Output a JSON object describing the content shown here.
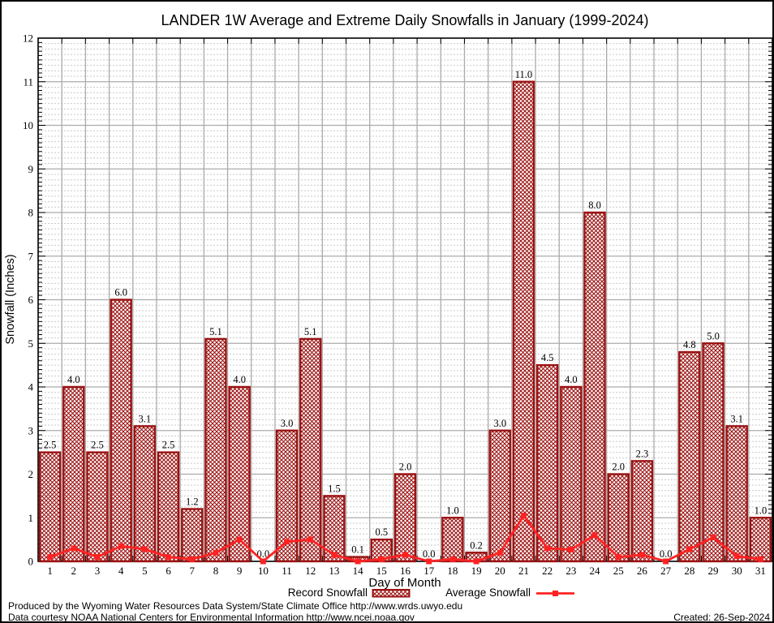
{
  "chart_data": {
    "type": "bar",
    "title": "LANDER 1W Average and Extreme Daily Snowfalls in January (1999-2024)",
    "xlabel": "Day of Month",
    "ylabel": "Snowfall (Inches)",
    "ylim": [
      0,
      12
    ],
    "yticks": [
      0,
      1,
      2,
      3,
      4,
      5,
      6,
      7,
      8,
      9,
      10,
      11,
      12
    ],
    "categories": [
      1,
      2,
      3,
      4,
      5,
      6,
      7,
      8,
      9,
      10,
      11,
      12,
      13,
      14,
      15,
      16,
      17,
      18,
      19,
      20,
      21,
      22,
      23,
      24,
      25,
      26,
      27,
      28,
      29,
      30,
      31
    ],
    "series": [
      {
        "name": "Record Snowfall",
        "type": "bar",
        "color": "#9B1212",
        "values": [
          2.5,
          4.0,
          2.5,
          6.0,
          3.1,
          2.5,
          1.2,
          5.1,
          4.0,
          0.0,
          3.0,
          5.1,
          1.5,
          0.1,
          0.5,
          2.0,
          0.0,
          1.0,
          0.2,
          3.0,
          11.0,
          4.5,
          4.0,
          8.0,
          2.0,
          2.3,
          0.0,
          4.8,
          5.0,
          3.1,
          1.0
        ],
        "labels": [
          "2.5",
          "4.0",
          "2.5",
          "6.0",
          "3.1",
          "2.5",
          "1.2",
          "5.1",
          "4.0",
          "0.0",
          "3.0",
          "5.1",
          "1.5",
          "0.1",
          "0.5",
          "2.0",
          "0.0",
          "1.0",
          "0.2",
          "3.0",
          "11.0",
          "4.5",
          "4.0",
          "8.0",
          "2.0",
          "2.3",
          "0.0",
          "4.8",
          "5.0",
          "3.1",
          "1.0"
        ]
      },
      {
        "name": "Average Snowfall",
        "type": "line",
        "color": "#FF2222",
        "values": [
          0.1,
          0.3,
          0.1,
          0.35,
          0.28,
          0.1,
          0.05,
          0.2,
          0.5,
          0.0,
          0.45,
          0.5,
          0.15,
          0.0,
          0.05,
          0.15,
          0.0,
          0.05,
          0.0,
          0.2,
          1.05,
          0.3,
          0.27,
          0.6,
          0.1,
          0.15,
          0.0,
          0.28,
          0.55,
          0.12,
          0.05
        ]
      }
    ],
    "grid": {
      "major_color": "#ABABAB",
      "minor_color": "#C9C9C9",
      "minor_step": 0.125,
      "grid_on": true
    },
    "legend_position": "bottom"
  },
  "legend": {
    "record_label": "Record Snowfall",
    "average_label": "Average Snowfall"
  },
  "footer": {
    "line1": "Produced by the Wyoming Water Resources Data System/State Climate Office http://www.wrds.uwyo.edu",
    "line2": "Data courtesy NOAA National Centers for Environmental Information http://www.ncei.noaa.gov",
    "created": "Created: 26-Sep-2024"
  }
}
